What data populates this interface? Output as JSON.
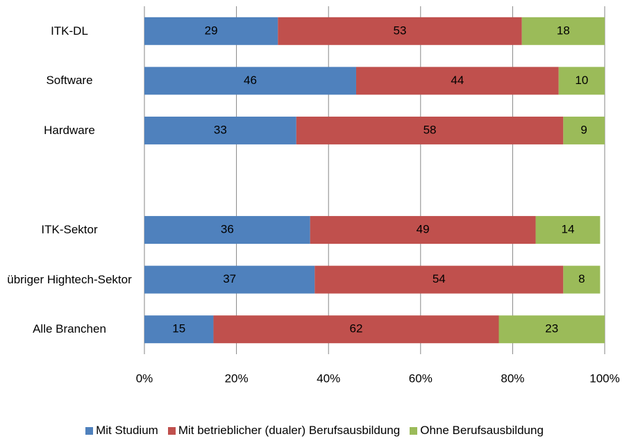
{
  "chart_data": {
    "type": "stacked-barh",
    "categories": [
      "ITK-DL",
      "Software",
      "Hardware",
      null,
      "ITK-Sektor",
      "übriger Hightech-Sektor",
      "Alle Branchen"
    ],
    "series": [
      {
        "name": "Mit Studium",
        "color": "#4f81bd",
        "values": [
          29,
          46,
          33,
          null,
          36,
          37,
          15
        ]
      },
      {
        "name": "Mit betrieblicher (dualer) Berufsausbildung",
        "color": "#c0504d",
        "values": [
          53,
          44,
          58,
          null,
          49,
          54,
          62
        ]
      },
      {
        "name": "Ohne Berufsausbildung",
        "color": "#9bbb59",
        "values": [
          18,
          10,
          9,
          null,
          14,
          8,
          23
        ]
      }
    ],
    "xlim": [
      0,
      100
    ],
    "xticks": [
      {
        "value": 0,
        "label": "0%"
      },
      {
        "value": 20,
        "label": "20%"
      },
      {
        "value": 40,
        "label": "40%"
      },
      {
        "value": 60,
        "label": "60%"
      },
      {
        "value": 80,
        "label": "80%"
      },
      {
        "value": 100,
        "label": "100%"
      }
    ],
    "grid": true,
    "legend": "bottom"
  }
}
